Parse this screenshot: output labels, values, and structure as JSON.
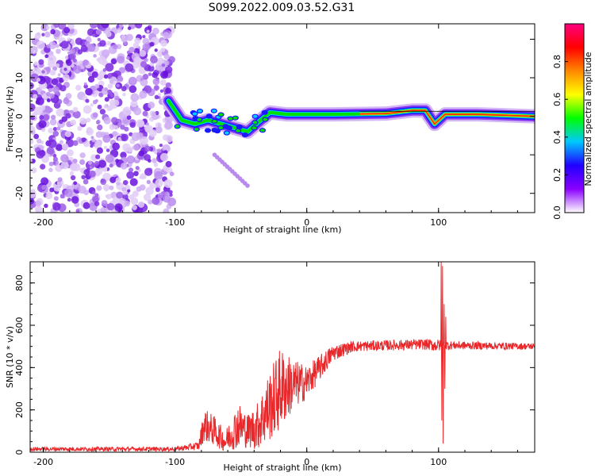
{
  "title": "S099.2022.009.03.52.G31",
  "chart_data": [
    {
      "type": "heatmap",
      "xlabel": "Height of straight line (km)",
      "ylabel": "Frequency (Hz)",
      "xlim": [
        -210,
        173
      ],
      "ylim": [
        -25,
        24
      ],
      "xticks": [
        -200,
        -100,
        0,
        100
      ],
      "yticks": [
        -20,
        -10,
        0,
        10,
        20
      ],
      "colorbar": {
        "label": "Normalized spectral amplitude",
        "range": [
          0,
          1
        ],
        "ticks": [
          "0.0",
          "0.2",
          "0.4",
          "0.6",
          "0.8"
        ],
        "colors": [
          "#ffffff",
          "#8a00ff",
          "#2000ff",
          "#00c8ff",
          "#00ff00",
          "#ffff00",
          "#ff8800",
          "#ff0000",
          "#ff0080"
        ]
      },
      "ridge": [
        {
          "x": -105,
          "y": 4
        },
        {
          "x": -95,
          "y": -1
        },
        {
          "x": -85,
          "y": -2
        },
        {
          "x": -75,
          "y": -1
        },
        {
          "x": -65,
          "y": -2
        },
        {
          "x": -55,
          "y": -3
        },
        {
          "x": -45,
          "y": -4
        },
        {
          "x": -35,
          "y": -1
        },
        {
          "x": -28,
          "y": 1
        },
        {
          "x": -15,
          "y": 0.5
        },
        {
          "x": 0,
          "y": 0.5
        },
        {
          "x": 20,
          "y": 0.5
        },
        {
          "x": 40,
          "y": 0.6
        },
        {
          "x": 60,
          "y": 0.7
        },
        {
          "x": 80,
          "y": 1.5
        },
        {
          "x": 90,
          "y": 1.5
        },
        {
          "x": 97,
          "y": -2
        },
        {
          "x": 105,
          "y": 0.5
        },
        {
          "x": 130,
          "y": 0.5
        },
        {
          "x": 173,
          "y": 0
        }
      ]
    },
    {
      "type": "line",
      "xlabel": "Height of straight line (km)",
      "ylabel": "SNR (10 * v/v)",
      "xlim": [
        -210,
        173
      ],
      "ylim": [
        0,
        900
      ],
      "xticks": [
        -200,
        -100,
        0,
        100
      ],
      "yticks": [
        0,
        200,
        400,
        600,
        800
      ],
      "series": [
        {
          "color": "#e8282b",
          "envelope": [
            {
              "x": -210,
              "mean": 15,
              "noise": 10
            },
            {
              "x": -100,
              "mean": 15,
              "noise": 10
            },
            {
              "x": -82,
              "mean": 30,
              "noise": 20
            },
            {
              "x": -78,
              "mean": 130,
              "noise": 80
            },
            {
              "x": -70,
              "mean": 100,
              "noise": 70
            },
            {
              "x": -62,
              "mean": 50,
              "noise": 50
            },
            {
              "x": -52,
              "mean": 130,
              "noise": 110
            },
            {
              "x": -45,
              "mean": 100,
              "noise": 80
            },
            {
              "x": -38,
              "mean": 120,
              "noise": 110
            },
            {
              "x": -30,
              "mean": 200,
              "noise": 160
            },
            {
              "x": -20,
              "mean": 300,
              "noise": 200
            },
            {
              "x": -10,
              "mean": 320,
              "noise": 120
            },
            {
              "x": 0,
              "mean": 330,
              "noise": 80
            },
            {
              "x": 10,
              "mean": 400,
              "noise": 60
            },
            {
              "x": 20,
              "mean": 470,
              "noise": 40
            },
            {
              "x": 35,
              "mean": 500,
              "noise": 25
            },
            {
              "x": 60,
              "mean": 505,
              "noise": 25
            },
            {
              "x": 90,
              "mean": 510,
              "noise": 25
            },
            {
              "x": 98,
              "mean": 505,
              "noise": 30
            },
            {
              "x": 110,
              "mean": 505,
              "noise": 20
            },
            {
              "x": 173,
              "mean": 500,
              "noise": 15
            }
          ],
          "spikes": [
            {
              "x": 102,
              "y": 900
            },
            {
              "x": 102.6,
              "y": 150
            },
            {
              "x": 103,
              "y": 880
            },
            {
              "x": 103.6,
              "y": 40
            },
            {
              "x": 104.2,
              "y": 700
            },
            {
              "x": 104.8,
              "y": 300
            },
            {
              "x": 105.5,
              "y": 640
            }
          ]
        }
      ]
    }
  ]
}
